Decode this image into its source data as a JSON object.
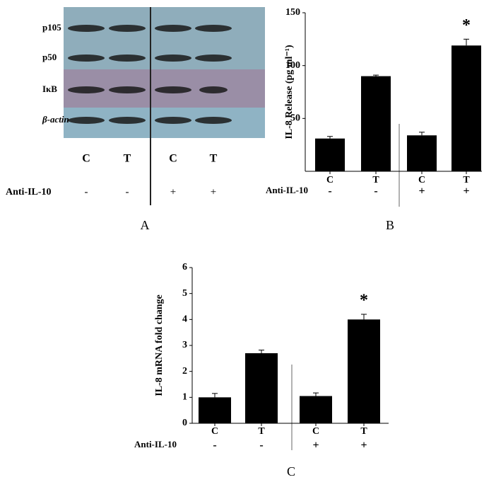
{
  "blot": {
    "panel_label": "A",
    "row_labels": [
      "p105",
      "p50",
      "IκB",
      "β-actin"
    ],
    "lane_labels": [
      "C",
      "T",
      "C",
      "T"
    ],
    "treatment_label": "Anti-IL-10",
    "treatment_signs": [
      "-",
      "-",
      "+",
      "+"
    ]
  },
  "chart_data": [
    {
      "type": "bar",
      "panel_label": "B",
      "y_label": "IL-8 Release (pg ml⁻¹)",
      "categories": [
        "C",
        "T",
        "C",
        "T"
      ],
      "values": [
        31,
        90,
        34,
        119
      ],
      "errors": [
        2,
        1,
        3,
        6
      ],
      "significance": [
        null,
        null,
        null,
        "*"
      ],
      "treatment_label": "Anti-IL-10",
      "treatment_signs": [
        "-",
        "-",
        "+",
        "+"
      ],
      "color": "#000000",
      "ylim": [
        0,
        150
      ],
      "yticks": [
        50,
        100,
        150
      ]
    },
    {
      "type": "bar",
      "panel_label": "C",
      "y_label": "IL-8 mRNA fold change",
      "categories": [
        "C",
        "T",
        "C",
        "T"
      ],
      "values": [
        1.0,
        2.7,
        1.05,
        4.0
      ],
      "errors": [
        0.15,
        0.12,
        0.12,
        0.2
      ],
      "significance": [
        null,
        null,
        null,
        "*"
      ],
      "treatment_label": "Anti-IL-10",
      "treatment_signs": [
        "-",
        "-",
        "+",
        "+"
      ],
      "color": "#000000",
      "ylim": [
        0,
        6
      ],
      "yticks": [
        0,
        1,
        2,
        3,
        4,
        5,
        6
      ]
    }
  ]
}
